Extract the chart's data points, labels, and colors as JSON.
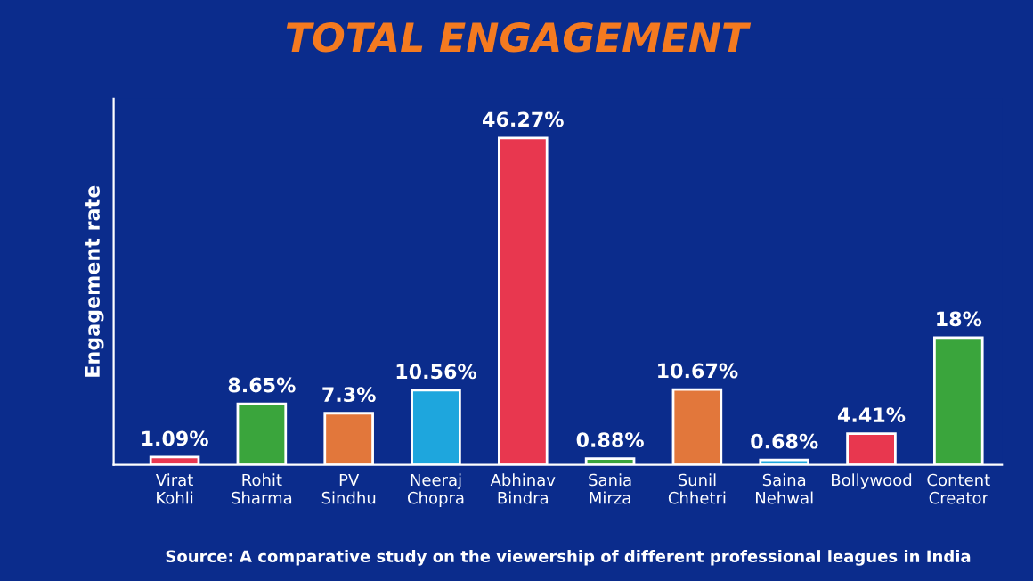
{
  "chart_data": {
    "type": "bar",
    "title": "TOTAL ENGAGEMENT",
    "ylabel": "Engagement rate",
    "categories": [
      "Virat\nKohli",
      "Rohit\nSharma",
      "PV\nSindhu",
      "Neeraj\nChopra",
      "Abhinav\nBindra",
      "Sania\nMirza",
      "Sunil\nChhetri",
      "Saina\nNehwal",
      "Bollywood",
      "Content\nCreator"
    ],
    "values": [
      1.09,
      8.65,
      7.3,
      10.56,
      46.27,
      0.88,
      10.67,
      0.68,
      4.41,
      18
    ],
    "value_labels": [
      "1.09%",
      "8.65%",
      "7.3%",
      "10.56%",
      "46.27%",
      "0.88%",
      "10.67%",
      "0.68%",
      "4.41%",
      "18%"
    ],
    "colors": [
      "#e8374f",
      "#3aa53c",
      "#e2773b",
      "#1ea6dd",
      "#e8374f",
      "#3aa53c",
      "#e2773b",
      "#1ea6dd",
      "#e8374f",
      "#3aa53c"
    ],
    "annotations": [
      "Source: A comparative study on the viewership of different professional leagues in India"
    ],
    "grid": false,
    "legend": false
  }
}
